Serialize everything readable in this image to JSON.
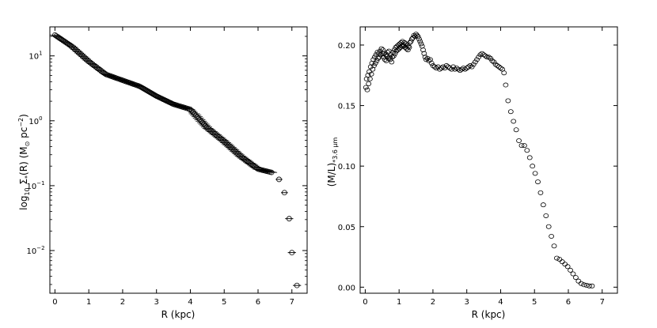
{
  "chart_data": [
    {
      "type": "scatter",
      "xlabel": "R (kpc)",
      "ylabel": {
        "pre": "log",
        "sub1": "10",
        "sym": " Σ",
        "sub2": "*",
        "post": "(R) (M",
        "odot": "⊙",
        "post2": " pc",
        "sup": "−2",
        "close": ")"
      },
      "ylog": true,
      "xlim": [
        -0.15,
        7.45
      ],
      "ylim": [
        0.0022,
        28
      ],
      "xticks": [
        0,
        1,
        2,
        3,
        4,
        5,
        6,
        7
      ],
      "xtick_labels": [
        "0",
        "1",
        "2",
        "3",
        "4",
        "5",
        "6",
        "7"
      ],
      "yticks": [
        0.01,
        0.1,
        1,
        10
      ],
      "ytick_labels": [
        {
          "base": "10",
          "exp": "−2"
        },
        {
          "base": "10",
          "exp": "−1"
        },
        {
          "base": "10",
          "exp": "0"
        },
        {
          "base": "10",
          "exp": "1"
        }
      ],
      "profile_x": [
        0.0,
        0.5,
        1.0,
        1.5,
        2.0,
        2.5,
        3.0,
        3.5,
        4.0,
        4.5,
        5.0,
        5.5,
        6.0,
        6.4
      ],
      "profile_y": [
        21.0,
        14.0,
        8.2,
        5.2,
        4.2,
        3.4,
        2.4,
        1.8,
        1.5,
        0.78,
        0.48,
        0.28,
        0.18,
        0.16
      ],
      "profile_step": 0.04,
      "outer_points": [
        {
          "x": 6.62,
          "y": 0.125,
          "xerr": 0.1
        },
        {
          "x": 6.78,
          "y": 0.078,
          "xerr": 0.1
        },
        {
          "x": 6.92,
          "y": 0.031,
          "xerr": 0.12
        },
        {
          "x": 7.0,
          "y": 0.0093,
          "xerr": 0.12
        },
        {
          "x": 7.15,
          "y": 0.0029,
          "xerr": 0.12
        }
      ]
    },
    {
      "type": "scatter",
      "xlabel": "R (kpc)",
      "ylabel": {
        "main": "(M/L)",
        "sub": "*3.6 μm"
      },
      "xlim": [
        -0.15,
        7.45
      ],
      "ylim": [
        -0.005,
        0.215
      ],
      "xticks": [
        0,
        1,
        2,
        3,
        4,
        5,
        6,
        7
      ],
      "xtick_labels": [
        "0",
        "1",
        "2",
        "3",
        "4",
        "5",
        "6",
        "7"
      ],
      "yticks": [
        0.0,
        0.05,
        0.1,
        0.15,
        0.2
      ],
      "ytick_labels": [
        "0.00",
        "0.05",
        "0.10",
        "0.15",
        "0.20"
      ],
      "points": [
        [
          0.02,
          0.165
        ],
        [
          0.04,
          0.172
        ],
        [
          0.06,
          0.163
        ],
        [
          0.08,
          0.175
        ],
        [
          0.1,
          0.168
        ],
        [
          0.12,
          0.178
        ],
        [
          0.14,
          0.172
        ],
        [
          0.16,
          0.182
        ],
        [
          0.18,
          0.176
        ],
        [
          0.2,
          0.185
        ],
        [
          0.22,
          0.18
        ],
        [
          0.24,
          0.188
        ],
        [
          0.26,
          0.183
        ],
        [
          0.28,
          0.19
        ],
        [
          0.3,
          0.185
        ],
        [
          0.32,
          0.192
        ],
        [
          0.34,
          0.187
        ],
        [
          0.36,
          0.194
        ],
        [
          0.38,
          0.189
        ],
        [
          0.4,
          0.193
        ],
        [
          0.42,
          0.19
        ],
        [
          0.44,
          0.195
        ],
        [
          0.46,
          0.192
        ],
        [
          0.48,
          0.197
        ],
        [
          0.5,
          0.193
        ],
        [
          0.52,
          0.196
        ],
        [
          0.54,
          0.19
        ],
        [
          0.56,
          0.193
        ],
        [
          0.58,
          0.188
        ],
        [
          0.6,
          0.192
        ],
        [
          0.62,
          0.187
        ],
        [
          0.64,
          0.191
        ],
        [
          0.66,
          0.194
        ],
        [
          0.68,
          0.189
        ],
        [
          0.7,
          0.195
        ],
        [
          0.72,
          0.19
        ],
        [
          0.74,
          0.188
        ],
        [
          0.76,
          0.192
        ],
        [
          0.78,
          0.186
        ],
        [
          0.8,
          0.19
        ],
        [
          0.82,
          0.194
        ],
        [
          0.84,
          0.191
        ],
        [
          0.86,
          0.196
        ],
        [
          0.88,
          0.193
        ],
        [
          0.9,
          0.198
        ],
        [
          0.92,
          0.195
        ],
        [
          0.94,
          0.199
        ],
        [
          0.96,
          0.196
        ],
        [
          0.98,
          0.2
        ],
        [
          1.0,
          0.197
        ],
        [
          1.02,
          0.201
        ],
        [
          1.04,
          0.198
        ],
        [
          1.06,
          0.202
        ],
        [
          1.08,
          0.199
        ],
        [
          1.1,
          0.203
        ],
        [
          1.12,
          0.2
        ],
        [
          1.14,
          0.199
        ],
        [
          1.16,
          0.202
        ],
        [
          1.18,
          0.198
        ],
        [
          1.2,
          0.201
        ],
        [
          1.22,
          0.197
        ],
        [
          1.24,
          0.2
        ],
        [
          1.26,
          0.196
        ],
        [
          1.28,
          0.199
        ],
        [
          1.3,
          0.198
        ],
        [
          1.32,
          0.202
        ],
        [
          1.35,
          0.203
        ],
        [
          1.38,
          0.205
        ],
        [
          1.41,
          0.206
        ],
        [
          1.44,
          0.208
        ],
        [
          1.47,
          0.207
        ],
        [
          1.5,
          0.209
        ],
        [
          1.53,
          0.208
        ],
        [
          1.56,
          0.207
        ],
        [
          1.59,
          0.205
        ],
        [
          1.62,
          0.203
        ],
        [
          1.65,
          0.201
        ],
        [
          1.68,
          0.199
        ],
        [
          1.71,
          0.196
        ],
        [
          1.74,
          0.193
        ],
        [
          1.77,
          0.19
        ],
        [
          1.8,
          0.188
        ],
        [
          1.84,
          0.189
        ],
        [
          1.88,
          0.187
        ],
        [
          1.92,
          0.188
        ],
        [
          1.96,
          0.185
        ],
        [
          2.0,
          0.183
        ],
        [
          2.05,
          0.182
        ],
        [
          2.1,
          0.181
        ],
        [
          2.15,
          0.182
        ],
        [
          2.2,
          0.18
        ],
        [
          2.25,
          0.181
        ],
        [
          2.3,
          0.182
        ],
        [
          2.35,
          0.181
        ],
        [
          2.4,
          0.183
        ],
        [
          2.45,
          0.182
        ],
        [
          2.5,
          0.181
        ],
        [
          2.55,
          0.18
        ],
        [
          2.6,
          0.182
        ],
        [
          2.65,
          0.18
        ],
        [
          2.7,
          0.181
        ],
        [
          2.75,
          0.18
        ],
        [
          2.8,
          0.179
        ],
        [
          2.85,
          0.18
        ],
        [
          2.9,
          0.181
        ],
        [
          2.95,
          0.18
        ],
        [
          3.0,
          0.181
        ],
        [
          3.05,
          0.182
        ],
        [
          3.1,
          0.183
        ],
        [
          3.15,
          0.182
        ],
        [
          3.2,
          0.184
        ],
        [
          3.25,
          0.186
        ],
        [
          3.3,
          0.188
        ],
        [
          3.35,
          0.19
        ],
        [
          3.4,
          0.192
        ],
        [
          3.45,
          0.193
        ],
        [
          3.5,
          0.192
        ],
        [
          3.55,
          0.191
        ],
        [
          3.6,
          0.19
        ],
        [
          3.65,
          0.19
        ],
        [
          3.7,
          0.189
        ],
        [
          3.75,
          0.187
        ],
        [
          3.8,
          0.186
        ],
        [
          3.85,
          0.184
        ],
        [
          3.9,
          0.183
        ],
        [
          3.95,
          0.182
        ],
        [
          4.0,
          0.181
        ],
        [
          4.05,
          0.18
        ],
        [
          4.1,
          0.177
        ],
        [
          4.15,
          0.167
        ],
        [
          4.22,
          0.154
        ],
        [
          4.3,
          0.145
        ],
        [
          4.38,
          0.137
        ],
        [
          4.46,
          0.13
        ],
        [
          4.54,
          0.121
        ],
        [
          4.62,
          0.117
        ],
        [
          4.7,
          0.117
        ],
        [
          4.78,
          0.113
        ],
        [
          4.86,
          0.107
        ],
        [
          4.94,
          0.1
        ],
        [
          5.02,
          0.094
        ],
        [
          5.1,
          0.087
        ],
        [
          5.18,
          0.078
        ],
        [
          5.26,
          0.068
        ],
        [
          5.34,
          0.059
        ],
        [
          5.42,
          0.05
        ],
        [
          5.5,
          0.042
        ],
        [
          5.58,
          0.034
        ],
        [
          5.66,
          0.024
        ],
        [
          5.74,
          0.023
        ],
        [
          5.82,
          0.021
        ],
        [
          5.9,
          0.019
        ],
        [
          5.98,
          0.017
        ],
        [
          6.06,
          0.014
        ],
        [
          6.14,
          0.011
        ],
        [
          6.22,
          0.008
        ],
        [
          6.3,
          0.005
        ],
        [
          6.38,
          0.003
        ],
        [
          6.46,
          0.002
        ],
        [
          6.54,
          0.0015
        ],
        [
          6.62,
          0.001
        ],
        [
          6.7,
          0.001
        ]
      ]
    }
  ]
}
